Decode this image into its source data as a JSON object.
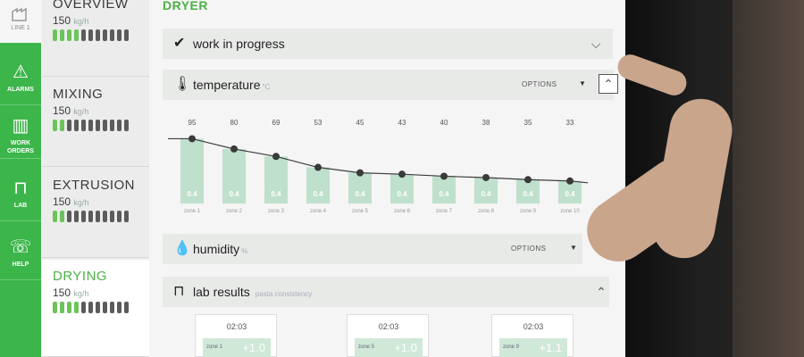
{
  "rail": {
    "line_label": "LINE 1",
    "items": [
      {
        "label": "ALARMS",
        "icon": "alarm-icon"
      },
      {
        "label": "WORK ORDERS",
        "icon": "book-icon"
      },
      {
        "label": "LAB",
        "icon": "test-tube-icon"
      },
      {
        "label": "HELP",
        "icon": "help-phone-icon"
      }
    ]
  },
  "lines": [
    {
      "name": "OVERVIEW",
      "rate": "150",
      "unit": "kg/h",
      "level_on": 4,
      "level_total": 11
    },
    {
      "name": "MIXING",
      "rate": "150",
      "unit": "kg/h",
      "level_on": 2,
      "level_total": 11
    },
    {
      "name": "EXTRUSION",
      "rate": "150",
      "unit": "kg/h",
      "level_on": 2,
      "level_total": 11
    },
    {
      "name": "DRYING",
      "rate": "150",
      "unit": "kg/h",
      "level_on": 4,
      "level_total": 11
    }
  ],
  "main": {
    "section_title": "DRYER",
    "status_panel": {
      "title": "work in progress",
      "icon": "check-circle-icon"
    },
    "temperature_panel": {
      "title": "temperature",
      "unit": "°C",
      "options_label": "OPTIONS",
      "icon": "thermometer-icon"
    },
    "humidity_panel": {
      "title": "humidity",
      "unit": "%",
      "options_label": "OPTIONS",
      "icon": "droplet-icon"
    },
    "lab_panel": {
      "title": "lab results",
      "subtitle": "pasta consistency",
      "icon": "test-tube-icon"
    },
    "lab_cards": [
      {
        "time": "02:03",
        "zone": "zone 1",
        "value": "+1.0"
      },
      {
        "time": "02:03",
        "zone": "zone 5",
        "value": "+1.0"
      },
      {
        "time": "02:03",
        "zone": "zone 9",
        "value": "+1.1"
      }
    ]
  },
  "colors": {
    "accent": "#3cb54a",
    "bar": "#bfe0cc",
    "line": "#3c3c3c"
  },
  "chart_data": {
    "type": "bar",
    "categories": [
      "zone 1",
      "zone 2",
      "zone 3",
      "zone 4",
      "zone 5",
      "zone 6",
      "zone 7",
      "zone 8",
      "zone 9",
      "zone 10"
    ],
    "values": [
      95,
      80,
      69,
      53,
      45,
      43,
      40,
      38,
      35,
      33
    ],
    "bar_labels": [
      "0.4",
      "0.4",
      "0.4",
      "0.4",
      "0.4",
      "0.4",
      "0.4",
      "0.4",
      "0.4",
      "0.4"
    ],
    "ylim": [
      0,
      110
    ],
    "grid": false,
    "overlay_line": true
  }
}
